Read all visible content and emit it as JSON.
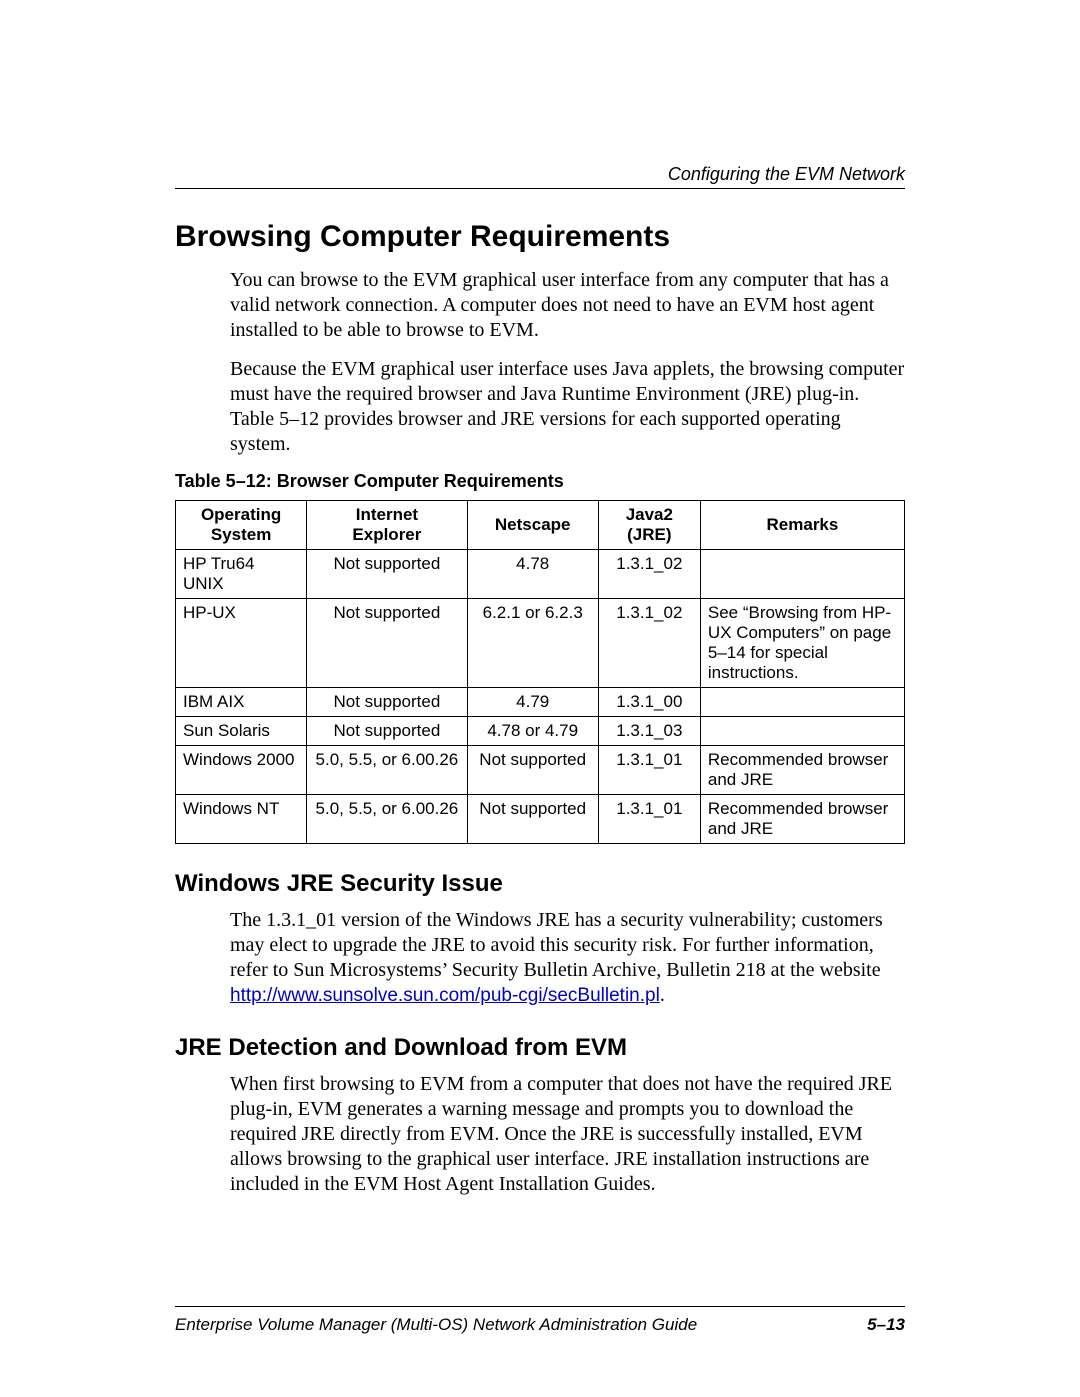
{
  "running_head": "Configuring the EVM Network",
  "section_title": "Browsing Computer Requirements",
  "intro_p1": "You can browse to the EVM graphical user interface from any computer that has a valid network connection. A computer does not need to have an EVM host agent installed to be able to browse to EVM.",
  "intro_p2": "Because the EVM graphical user interface uses Java applets, the browsing computer must have the required browser and Java Runtime Environment (JRE) plug-in. Table 5–12 provides browser and JRE versions for each supported operating system.",
  "table": {
    "caption": "Table 5–12:  Browser Computer Requirements",
    "headers": {
      "os1": "Operating",
      "os2": "System",
      "ie1": "Internet",
      "ie2": "Explorer",
      "ns": "Netscape",
      "jre1": "Java2",
      "jre2": "(JRE)",
      "remarks": "Remarks"
    },
    "rows": [
      {
        "os": "HP Tru64 UNIX",
        "ie": "Not supported",
        "ns": "4.78",
        "jre": "1.3.1_02",
        "remarks": ""
      },
      {
        "os": "HP-UX",
        "ie": "Not supported",
        "ns": "6.2.1 or 6.2.3",
        "jre": "1.3.1_02",
        "remarks": "See “Browsing from HP-UX Computers” on page 5–14 for special instructions."
      },
      {
        "os": "IBM AIX",
        "ie": "Not supported",
        "ns": "4.79",
        "jre": "1.3.1_00",
        "remarks": ""
      },
      {
        "os": "Sun Solaris",
        "ie": "Not supported",
        "ns": "4.78 or 4.79",
        "jre": "1.3.1_03",
        "remarks": ""
      },
      {
        "os": "Windows 2000",
        "ie": "5.0, 5.5, or 6.00.26",
        "ns": "Not supported",
        "jre": "1.3.1_01",
        "remarks": "Recommended browser and JRE"
      },
      {
        "os": "Windows NT",
        "ie": "5.0, 5.5, or 6.00.26",
        "ns": "Not supported",
        "jre": "1.3.1_01",
        "remarks": "Recommended browser and JRE"
      }
    ],
    "col_widths": [
      "18%",
      "22%",
      "18%",
      "14%",
      "28%"
    ]
  },
  "sub1_title": "Windows JRE Security Issue",
  "sub1_p": "The 1.3.1_01 version of the Windows JRE has a security vulnerability; customers may elect to upgrade the JRE to avoid this security risk. For further information, refer to Sun Microsystems’ Security Bulletin Archive, Bulletin 218 at the website ",
  "sub1_link": "http://www.sunsolve.sun.com/pub-cgi/secBulletin.pl",
  "sub1_tail": ".",
  "sub2_title": "JRE Detection and Download from EVM",
  "sub2_p": "When first browsing to EVM from a computer that does not have the required JRE plug-in, EVM generates a warning message and prompts you to download the required JRE directly from EVM. Once the JRE is successfully installed, EVM allows browsing to the graphical user interface. JRE installation instructions are included in the EVM Host Agent Installation Guides.",
  "footer_left": "Enterprise Volume Manager (Multi-OS) Network Administration Guide",
  "footer_right": "5–13"
}
